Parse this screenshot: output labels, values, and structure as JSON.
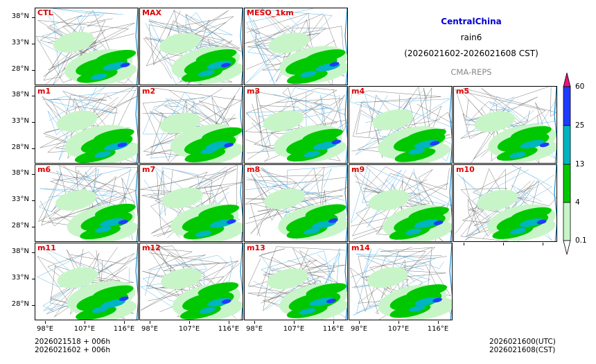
{
  "header": {
    "region": "CentralChina",
    "variable": "rain6",
    "period": "(2026021602-2026021608 CST)",
    "system": "CMA-REPS"
  },
  "panels": [
    [
      "CTL",
      "MAX",
      "MESO_1km"
    ],
    [
      "m1",
      "m2",
      "m3",
      "m4",
      "m5"
    ],
    [
      "m6",
      "m7",
      "m8",
      "m9",
      "m10"
    ],
    [
      "m11",
      "m12",
      "m13",
      "m14"
    ]
  ],
  "y_ticks": [
    "38°N",
    "33°N",
    "28°N"
  ],
  "x_ticks": [
    "98°E",
    "107°E",
    "116°E"
  ],
  "footer": {
    "init_utc": "2026021518  +  006h",
    "init_cst": "2026021602  +  006h",
    "valid_utc": "2026021600(UTC)",
    "valid_cst": "2026021608(CST)"
  },
  "colorbar": {
    "levels": [
      "0.1",
      "4",
      "13",
      "25",
      "60"
    ],
    "colors": [
      "#c8f5c8",
      "#00c800",
      "#00b4c0",
      "#1e3cff",
      "#e6147a"
    ]
  }
}
